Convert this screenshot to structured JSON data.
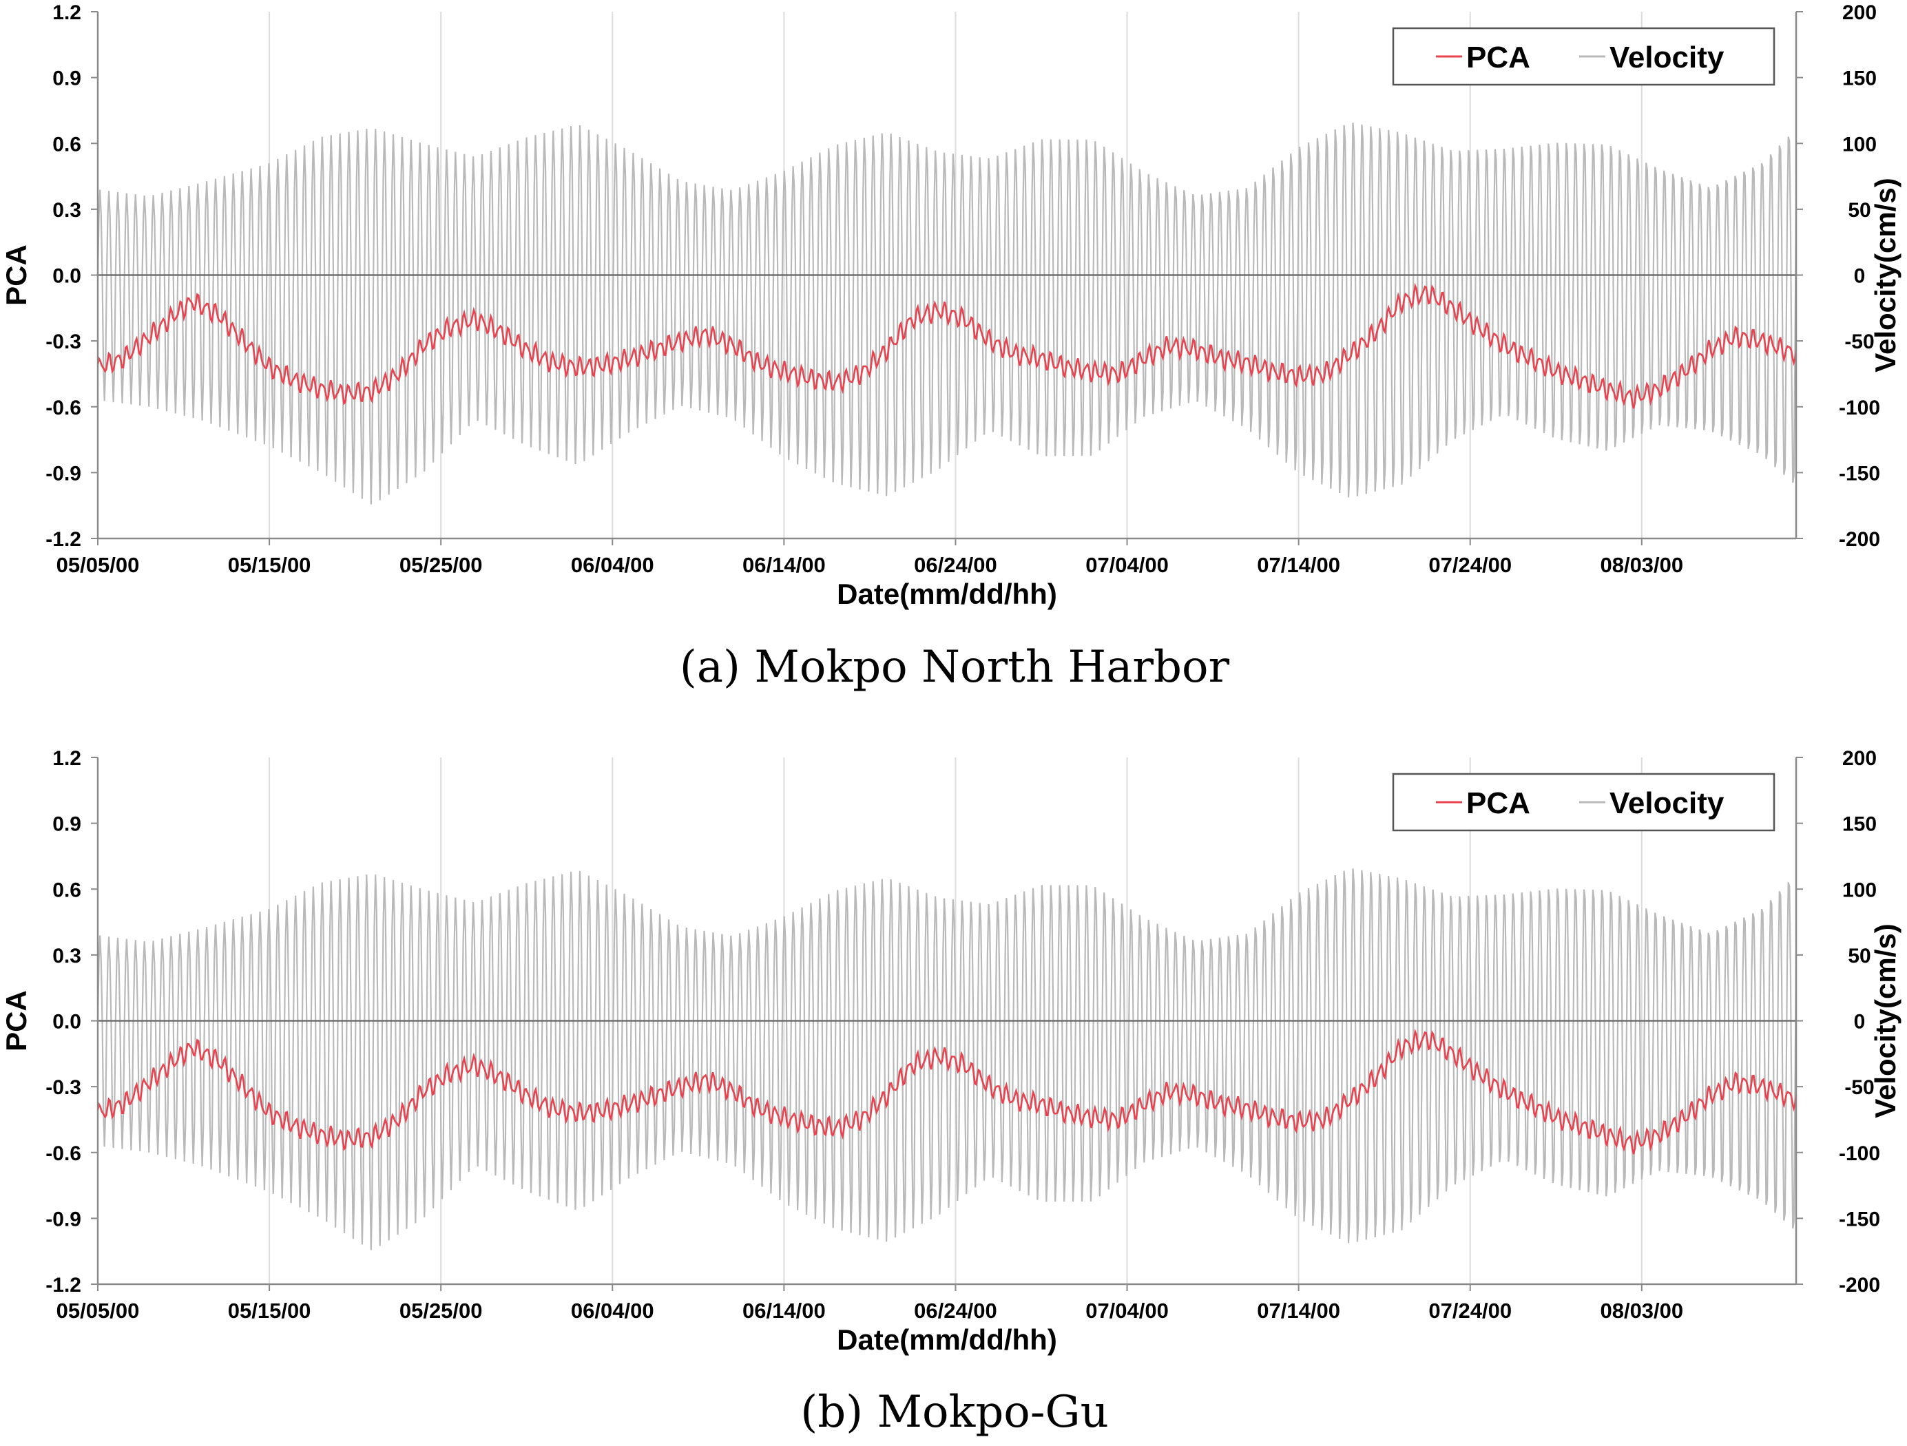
{
  "chart_data": [
    {
      "type": "line",
      "caption": "(a) Mokpo North Harbor",
      "xlabel": "Date(mm/dd/hh)",
      "ylabel": "PCA",
      "y2label": "Velocity(cm/s)",
      "x_tick_labels": [
        "05/05/00",
        "05/15/00",
        "05/25/00",
        "06/04/00",
        "06/14/00",
        "06/24/00",
        "07/04/00",
        "07/14/00",
        "07/24/00",
        "08/03/00"
      ],
      "x_tick_days": [
        0,
        10,
        20,
        30,
        40,
        50,
        60,
        70,
        80,
        90
      ],
      "x_range_days": [
        0,
        99
      ],
      "y_ticks": [
        "1.2",
        "0.9",
        "0.6",
        "0.3",
        "0.0",
        "-0.3",
        "-0.6",
        "-0.9",
        "-1.2"
      ],
      "ylim": [
        -1.2,
        1.2
      ],
      "y2_ticks": [
        "200",
        "150",
        "100",
        "50",
        "0",
        "-50",
        "-100",
        "-150",
        "-200"
      ],
      "y2lim": [
        -200,
        200
      ],
      "legend": {
        "position": "top-right",
        "entries": [
          "PCA",
          "Velocity"
        ]
      },
      "series": [
        {
          "name": "PCA",
          "color": "#e8434f",
          "axis": "left",
          "x_days": [
            0,
            1.5,
            3,
            4.5,
            5.5,
            7,
            8.5,
            10,
            11.5,
            13,
            14.5,
            16,
            17.5,
            19,
            20.5,
            22,
            23.5,
            25,
            26.5,
            28,
            29.5,
            31,
            32.5,
            34,
            35.5,
            37,
            38.5,
            40,
            41.5,
            43,
            44.5,
            46,
            47.5,
            49,
            50.5,
            52,
            53.5,
            55,
            56.5,
            58,
            59.5,
            61,
            62.5,
            64,
            65.5,
            67,
            68.5,
            70,
            71.5,
            73,
            74.5,
            76,
            77.5,
            79,
            80.5,
            82,
            83.5,
            85,
            86.5,
            88,
            89.5,
            91,
            92.5,
            94,
            95.5,
            97,
            99
          ],
          "values": [
            -0.42,
            -0.38,
            -0.28,
            -0.18,
            -0.12,
            -0.18,
            -0.3,
            -0.42,
            -0.48,
            -0.52,
            -0.54,
            -0.53,
            -0.45,
            -0.32,
            -0.24,
            -0.2,
            -0.26,
            -0.34,
            -0.4,
            -0.42,
            -0.41,
            -0.38,
            -0.34,
            -0.3,
            -0.27,
            -0.32,
            -0.4,
            -0.44,
            -0.47,
            -0.49,
            -0.45,
            -0.34,
            -0.2,
            -0.16,
            -0.2,
            -0.3,
            -0.36,
            -0.38,
            -0.42,
            -0.44,
            -0.45,
            -0.38,
            -0.32,
            -0.34,
            -0.38,
            -0.4,
            -0.44,
            -0.46,
            -0.45,
            -0.36,
            -0.26,
            -0.12,
            -0.08,
            -0.15,
            -0.24,
            -0.32,
            -0.38,
            -0.44,
            -0.48,
            -0.52,
            -0.56,
            -0.52,
            -0.44,
            -0.34,
            -0.28,
            -0.3,
            -0.36
          ]
        },
        {
          "name": "Velocity",
          "color": "#b9b9b9",
          "axis": "right",
          "envelope_days": [
            0,
            3,
            6,
            10,
            13,
            16,
            19,
            22,
            25,
            28,
            31,
            34,
            37,
            40,
            43,
            46,
            49,
            52,
            55,
            58,
            61,
            64,
            67,
            70,
            73,
            76,
            79,
            82,
            85,
            88,
            91,
            94,
            97,
            99
          ],
          "amplitude_max": [
            65,
            60,
            70,
            85,
            105,
            112,
            100,
            90,
            105,
            115,
            95,
            72,
            65,
            80,
            100,
            110,
            95,
            90,
            105,
            105,
            80,
            62,
            68,
            100,
            120,
            112,
            98,
            100,
            105,
            104,
            85,
            70,
            90,
            118
          ],
          "amplitude_min": [
            -95,
            -100,
            -110,
            -130,
            -150,
            -175,
            -150,
            -110,
            -130,
            -145,
            -120,
            -100,
            -110,
            -140,
            -160,
            -170,
            -150,
            -120,
            -140,
            -140,
            -110,
            -98,
            -120,
            -155,
            -175,
            -165,
            -130,
            -110,
            -130,
            -140,
            -120,
            -125,
            -145,
            -170
          ],
          "cycles_per_day": 1.93
        }
      ]
    },
    {
      "type": "line",
      "caption": "(b) Mokpo-Gu",
      "xlabel": "Date(mm/dd/hh)",
      "ylabel": "PCA",
      "y2label": "Velocity(cm/s)",
      "x_tick_labels": [
        "05/05/00",
        "05/15/00",
        "05/25/00",
        "06/04/00",
        "06/14/00",
        "06/24/00",
        "07/04/00",
        "07/14/00",
        "07/24/00",
        "08/03/00"
      ],
      "x_tick_days": [
        0,
        10,
        20,
        30,
        40,
        50,
        60,
        70,
        80,
        90
      ],
      "x_range_days": [
        0,
        99
      ],
      "y_ticks": [
        "1.2",
        "0.9",
        "0.6",
        "0.3",
        "0.0",
        "-0.3",
        "-0.6",
        "-0.9",
        "-1.2"
      ],
      "ylim": [
        -1.2,
        1.2
      ],
      "y2_ticks": [
        "200",
        "150",
        "100",
        "50",
        "0",
        "-50",
        "-100",
        "-150",
        "-200"
      ],
      "y2lim": [
        -200,
        200
      ],
      "legend": {
        "position": "top-right",
        "entries": [
          "PCA",
          "Velocity"
        ]
      },
      "series": [
        {
          "name": "PCA",
          "color": "#e8434f",
          "axis": "left",
          "x_days": [
            0,
            1.5,
            3,
            4.5,
            5.5,
            7,
            8.5,
            10,
            11.5,
            13,
            14.5,
            16,
            17.5,
            19,
            20.5,
            22,
            23.5,
            25,
            26.5,
            28,
            29.5,
            31,
            32.5,
            34,
            35.5,
            37,
            38.5,
            40,
            41.5,
            43,
            44.5,
            46,
            47.5,
            49,
            50.5,
            52,
            53.5,
            55,
            56.5,
            58,
            59.5,
            61,
            62.5,
            64,
            65.5,
            67,
            68.5,
            70,
            71.5,
            73,
            74.5,
            76,
            77.5,
            79,
            80.5,
            82,
            83.5,
            85,
            86.5,
            88,
            89.5,
            91,
            92.5,
            94,
            95.5,
            97,
            99
          ],
          "values": [
            -0.42,
            -0.38,
            -0.28,
            -0.18,
            -0.12,
            -0.18,
            -0.3,
            -0.42,
            -0.48,
            -0.52,
            -0.54,
            -0.53,
            -0.45,
            -0.32,
            -0.24,
            -0.2,
            -0.26,
            -0.34,
            -0.4,
            -0.42,
            -0.41,
            -0.38,
            -0.34,
            -0.3,
            -0.27,
            -0.32,
            -0.4,
            -0.44,
            -0.47,
            -0.49,
            -0.45,
            -0.34,
            -0.2,
            -0.16,
            -0.2,
            -0.3,
            -0.36,
            -0.38,
            -0.42,
            -0.44,
            -0.45,
            -0.38,
            -0.32,
            -0.34,
            -0.38,
            -0.4,
            -0.44,
            -0.46,
            -0.45,
            -0.36,
            -0.26,
            -0.12,
            -0.08,
            -0.15,
            -0.24,
            -0.32,
            -0.38,
            -0.44,
            -0.48,
            -0.52,
            -0.56,
            -0.52,
            -0.44,
            -0.34,
            -0.28,
            -0.3,
            -0.36
          ]
        },
        {
          "name": "Velocity",
          "color": "#b9b9b9",
          "axis": "right",
          "envelope_days": [
            0,
            3,
            6,
            10,
            13,
            16,
            19,
            22,
            25,
            28,
            31,
            34,
            37,
            40,
            43,
            46,
            49,
            52,
            55,
            58,
            61,
            64,
            67,
            70,
            73,
            76,
            79,
            82,
            85,
            88,
            91,
            94,
            97,
            99
          ],
          "amplitude_max": [
            65,
            60,
            70,
            85,
            105,
            112,
            100,
            90,
            105,
            115,
            95,
            72,
            65,
            80,
            100,
            110,
            95,
            90,
            105,
            105,
            80,
            62,
            68,
            100,
            120,
            112,
            98,
            100,
            105,
            104,
            85,
            70,
            90,
            118
          ],
          "amplitude_min": [
            -95,
            -100,
            -110,
            -130,
            -150,
            -175,
            -150,
            -110,
            -130,
            -145,
            -120,
            -100,
            -110,
            -140,
            -160,
            -170,
            -150,
            -120,
            -140,
            -140,
            -110,
            -98,
            -120,
            -155,
            -175,
            -165,
            -130,
            -110,
            -130,
            -140,
            -120,
            -125,
            -145,
            -170
          ],
          "cycles_per_day": 1.93
        }
      ]
    }
  ]
}
